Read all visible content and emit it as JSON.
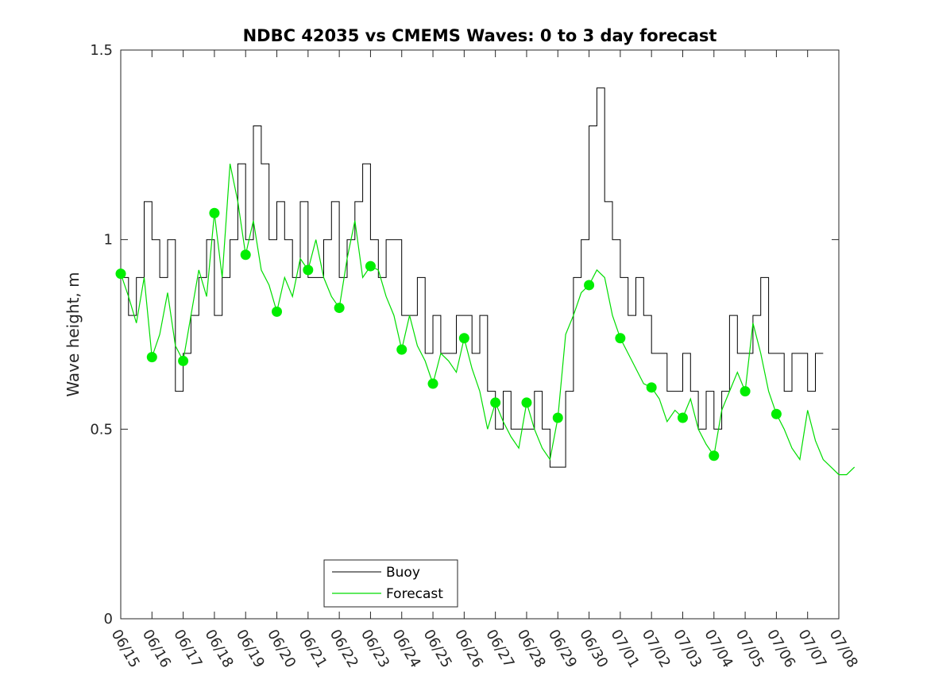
{
  "chart_data": {
    "type": "line",
    "title": "NDBC 42035 vs CMEMS Waves: 0 to 3 day forecast",
    "ylabel": "Wave height, m",
    "xlabel": "",
    "ylim": [
      0,
      1.5
    ],
    "yticks": [
      0,
      0.5,
      1,
      1.5
    ],
    "ytick_labels": [
      "0",
      "0.5",
      "1",
      "1.5"
    ],
    "x_start_date": "06/15",
    "x_end_date": "07/08",
    "xtick_labels": [
      "06/15",
      "06/16",
      "06/17",
      "06/18",
      "06/19",
      "06/20",
      "06/21",
      "06/22",
      "06/23",
      "06/24",
      "06/25",
      "06/26",
      "06/27",
      "06/28",
      "06/29",
      "06/30",
      "07/01",
      "07/02",
      "07/03",
      "07/04",
      "07/05",
      "07/06",
      "07/07",
      "07/08"
    ],
    "legend": {
      "position": "bottom-center",
      "entries": [
        {
          "label": "Buoy",
          "color": "#000000"
        },
        {
          "label": "Forecast",
          "color": "#00dd00"
        }
      ]
    },
    "colors": {
      "buoy": "#000000",
      "forecast": "#00dd00",
      "marker": "#00ee00"
    },
    "series": [
      {
        "name": "Buoy",
        "x": [
          "06/15 00:00",
          "06/15 06:00",
          "06/15 12:00",
          "06/15 18:00",
          "06/16 00:00",
          "06/16 06:00",
          "06/16 12:00",
          "06/16 18:00",
          "06/17 00:00",
          "06/17 06:00",
          "06/17 12:00",
          "06/17 18:00",
          "06/18 00:00",
          "06/18 06:00",
          "06/18 12:00",
          "06/18 18:00",
          "06/19 00:00",
          "06/19 06:00",
          "06/19 12:00",
          "06/19 18:00",
          "06/20 00:00",
          "06/20 06:00",
          "06/20 12:00",
          "06/20 18:00",
          "06/21 00:00",
          "06/21 06:00",
          "06/21 12:00",
          "06/21 18:00",
          "06/22 00:00",
          "06/22 06:00",
          "06/22 12:00",
          "06/22 18:00",
          "06/23 00:00",
          "06/23 06:00",
          "06/23 12:00",
          "06/23 18:00",
          "06/24 00:00",
          "06/24 06:00",
          "06/24 12:00",
          "06/24 18:00",
          "06/25 00:00",
          "06/25 06:00",
          "06/25 12:00",
          "06/25 18:00",
          "06/26 00:00",
          "06/26 06:00",
          "06/26 12:00",
          "06/26 18:00",
          "06/27 00:00",
          "06/27 06:00",
          "06/27 12:00",
          "06/27 18:00",
          "06/28 00:00",
          "06/28 06:00",
          "06/28 12:00",
          "06/28 18:00",
          "06/29 00:00",
          "06/29 06:00",
          "06/29 12:00",
          "06/29 18:00",
          "06/30 00:00",
          "06/30 06:00",
          "06/30 12:00",
          "06/30 18:00",
          "07/01 00:00",
          "07/01 06:00",
          "07/01 12:00",
          "07/01 18:00",
          "07/02 00:00",
          "07/02 06:00",
          "07/02 12:00",
          "07/02 18:00",
          "07/03 00:00",
          "07/03 06:00",
          "07/03 12:00",
          "07/03 18:00",
          "07/04 00:00",
          "07/04 06:00",
          "07/04 12:00",
          "07/04 18:00",
          "07/05 00:00",
          "07/05 06:00",
          "07/05 12:00",
          "07/05 18:00",
          "07/06 00:00",
          "07/06 06:00",
          "07/06 12:00",
          "07/06 18:00",
          "07/07 00:00",
          "07/07 06:00",
          "07/07 12:00"
        ],
        "y": [
          0.9,
          0.8,
          0.9,
          1.1,
          1.0,
          0.9,
          1.0,
          0.6,
          0.7,
          0.8,
          0.9,
          1.0,
          0.8,
          0.9,
          1.0,
          1.2,
          1.0,
          1.3,
          1.2,
          1.0,
          1.1,
          1.0,
          0.9,
          1.1,
          0.9,
          0.9,
          1.0,
          1.1,
          0.9,
          1.0,
          1.1,
          1.2,
          1.0,
          0.9,
          1.0,
          1.0,
          0.8,
          0.8,
          0.9,
          0.7,
          0.8,
          0.7,
          0.7,
          0.8,
          0.8,
          0.7,
          0.8,
          0.6,
          0.5,
          0.6,
          0.5,
          0.5,
          0.5,
          0.6,
          0.5,
          0.4,
          0.4,
          0.6,
          0.9,
          1.0,
          1.3,
          1.4,
          1.1,
          1.0,
          0.9,
          0.8,
          0.9,
          0.8,
          0.7,
          0.7,
          0.6,
          0.6,
          0.7,
          0.6,
          0.5,
          0.6,
          0.5,
          0.6,
          0.8,
          0.7,
          0.7,
          0.8,
          0.9,
          0.7,
          0.7,
          0.6,
          0.7,
          0.7,
          0.6,
          0.7,
          0.7
        ]
      },
      {
        "name": "Forecast",
        "x": [
          "06/15 00:00",
          "06/15 06:00",
          "06/15 12:00",
          "06/15 18:00",
          "06/16 00:00",
          "06/16 06:00",
          "06/16 12:00",
          "06/16 18:00",
          "06/17 00:00",
          "06/17 06:00",
          "06/17 12:00",
          "06/17 18:00",
          "06/18 00:00",
          "06/18 06:00",
          "06/18 12:00",
          "06/18 18:00",
          "06/19 00:00",
          "06/19 06:00",
          "06/19 12:00",
          "06/19 18:00",
          "06/20 00:00",
          "06/20 06:00",
          "06/20 12:00",
          "06/20 18:00",
          "06/21 00:00",
          "06/21 06:00",
          "06/21 12:00",
          "06/21 18:00",
          "06/22 00:00",
          "06/22 06:00",
          "06/22 12:00",
          "06/22 18:00",
          "06/23 00:00",
          "06/23 06:00",
          "06/23 12:00",
          "06/23 18:00",
          "06/24 00:00",
          "06/24 06:00",
          "06/24 12:00",
          "06/24 18:00",
          "06/25 00:00",
          "06/25 06:00",
          "06/25 12:00",
          "06/25 18:00",
          "06/26 00:00",
          "06/26 06:00",
          "06/26 12:00",
          "06/26 18:00",
          "06/27 00:00",
          "06/27 06:00",
          "06/27 12:00",
          "06/27 18:00",
          "06/28 00:00",
          "06/28 06:00",
          "06/28 12:00",
          "06/28 18:00",
          "06/29 00:00",
          "06/29 06:00",
          "06/29 12:00",
          "06/29 18:00",
          "06/30 00:00",
          "06/30 06:00",
          "06/30 12:00",
          "06/30 18:00",
          "07/01 00:00",
          "07/01 06:00",
          "07/01 12:00",
          "07/01 18:00",
          "07/02 00:00",
          "07/02 06:00",
          "07/02 12:00",
          "07/02 18:00",
          "07/03 00:00",
          "07/03 06:00",
          "07/03 12:00",
          "07/03 18:00",
          "07/04 00:00",
          "07/04 06:00",
          "07/04 12:00",
          "07/04 18:00",
          "07/05 00:00",
          "07/05 06:00",
          "07/05 12:00",
          "07/05 18:00",
          "07/06 00:00",
          "07/06 06:00",
          "07/06 12:00",
          "07/06 18:00",
          "07/07 00:00",
          "07/07 06:00",
          "07/07 12:00",
          "07/07 18:00",
          "07/08 00:00",
          "07/08 06:00",
          "07/08 12:00"
        ],
        "y": [
          0.91,
          0.85,
          0.78,
          0.9,
          0.69,
          0.75,
          0.86,
          0.72,
          0.68,
          0.8,
          0.92,
          0.85,
          1.07,
          0.9,
          1.2,
          1.1,
          0.96,
          1.05,
          0.92,
          0.88,
          0.81,
          0.9,
          0.85,
          0.95,
          0.92,
          1.0,
          0.9,
          0.85,
          0.82,
          0.95,
          1.05,
          0.9,
          0.93,
          0.92,
          0.85,
          0.8,
          0.71,
          0.8,
          0.72,
          0.68,
          0.62,
          0.7,
          0.68,
          0.65,
          0.74,
          0.66,
          0.6,
          0.5,
          0.57,
          0.52,
          0.48,
          0.45,
          0.57,
          0.5,
          0.45,
          0.42,
          0.53,
          0.75,
          0.8,
          0.86,
          0.88,
          0.92,
          0.9,
          0.8,
          0.74,
          0.7,
          0.66,
          0.62,
          0.61,
          0.58,
          0.52,
          0.55,
          0.53,
          0.58,
          0.5,
          0.46,
          0.43,
          0.55,
          0.6,
          0.65,
          0.6,
          0.78,
          0.7,
          0.6,
          0.54,
          0.5,
          0.45,
          0.42,
          0.55,
          0.47,
          0.42,
          0.4,
          0.38,
          0.38,
          0.4
        ]
      }
    ],
    "markers": {
      "name": "Forecast",
      "x": [
        "06/15",
        "06/16",
        "06/17",
        "06/18",
        "06/19",
        "06/20",
        "06/21",
        "06/22",
        "06/23",
        "06/24",
        "06/25",
        "06/26",
        "06/27",
        "06/28",
        "06/29",
        "06/30",
        "07/01",
        "07/02",
        "07/03",
        "07/04",
        "07/05",
        "07/06"
      ],
      "y": [
        0.91,
        0.69,
        0.68,
        1.07,
        0.96,
        0.81,
        0.92,
        0.82,
        0.93,
        0.71,
        0.62,
        0.74,
        0.57,
        0.57,
        0.53,
        0.88,
        0.74,
        0.61,
        0.53,
        0.43,
        0.6,
        0.54
      ]
    }
  }
}
